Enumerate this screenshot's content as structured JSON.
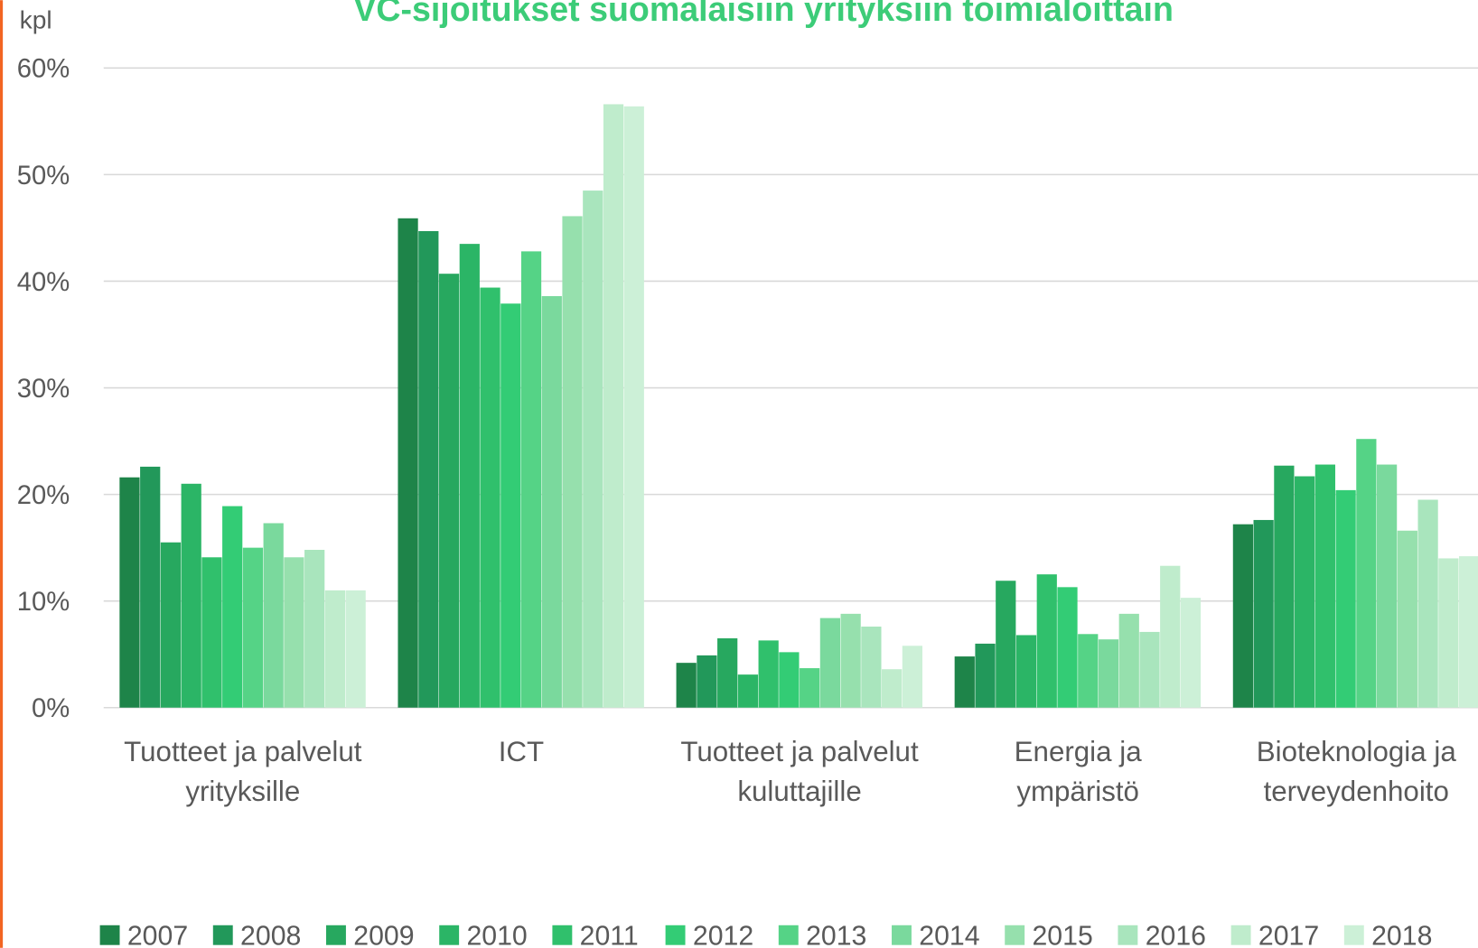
{
  "chart_data": {
    "type": "bar",
    "title": "VC-sijoitukset suomalaisiin yrityksiin toimialoittain",
    "y_axis_label": "kpl",
    "categories": [
      "Tuotteet ja palvelut\nyrityksille",
      "ICT",
      "Tuotteet ja palvelut\nkuluttajille",
      "Energia ja\nympäristö",
      "Bioteknologia ja\nterveydenhoito"
    ],
    "series": [
      {
        "name": "2007",
        "color": "#1e8449",
        "values": [
          21.6,
          45.9,
          4.2,
          4.8,
          17.2
        ]
      },
      {
        "name": "2008",
        "color": "#22985a",
        "values": [
          22.6,
          44.7,
          4.9,
          6.0,
          17.6
        ]
      },
      {
        "name": "2009",
        "color": "#27a85f",
        "values": [
          15.5,
          40.7,
          6.5,
          11.9,
          22.7
        ]
      },
      {
        "name": "2010",
        "color": "#2bb566",
        "values": [
          21.0,
          43.5,
          3.1,
          6.8,
          21.7
        ]
      },
      {
        "name": "2011",
        "color": "#30c06c",
        "values": [
          14.1,
          39.4,
          6.3,
          12.5,
          22.8
        ]
      },
      {
        "name": "2012",
        "color": "#33cc75",
        "values": [
          18.9,
          37.9,
          5.2,
          11.3,
          20.4
        ]
      },
      {
        "name": "2013",
        "color": "#55d386",
        "values": [
          15.0,
          42.8,
          3.7,
          6.9,
          25.2
        ]
      },
      {
        "name": "2014",
        "color": "#7ad99d",
        "values": [
          17.3,
          38.6,
          8.4,
          6.4,
          22.8
        ]
      },
      {
        "name": "2015",
        "color": "#96e0ad",
        "values": [
          14.1,
          46.1,
          8.8,
          8.8,
          16.6
        ]
      },
      {
        "name": "2016",
        "color": "#a9e5bd",
        "values": [
          14.8,
          48.5,
          7.6,
          7.1,
          19.5
        ]
      },
      {
        "name": "2017",
        "color": "#bfeccc",
        "values": [
          11.0,
          56.6,
          3.6,
          13.3,
          14.0
        ]
      },
      {
        "name": "2018",
        "color": "#ccf0d7",
        "values": [
          11.0,
          56.4,
          5.8,
          10.3,
          14.2
        ]
      }
    ],
    "ylim": [
      0,
      60
    ],
    "yticks": [
      {
        "value": 0,
        "label": "0%"
      },
      {
        "value": 10,
        "label": "10%"
      },
      {
        "value": 20,
        "label": "20%"
      },
      {
        "value": 30,
        "label": "30%"
      },
      {
        "value": 40,
        "label": "40%"
      },
      {
        "value": 50,
        "label": "50%"
      },
      {
        "value": 60,
        "label": "60%"
      }
    ],
    "grid": true,
    "legend": "bottom"
  }
}
